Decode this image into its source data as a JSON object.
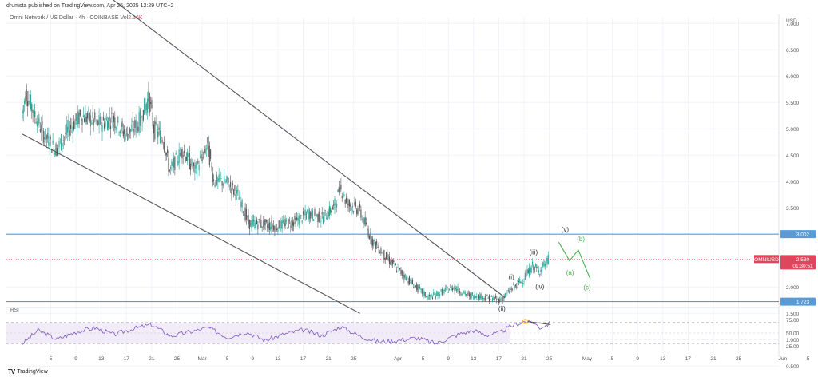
{
  "header": {
    "publisher": "drumsta published on TradingView.com, Apr 25, 2025 12:29 UTC+2",
    "symbol": "Omni Network / US Dollar · 4h · COINBASE",
    "vol_label": "Vol",
    "vol_value": "2.16K"
  },
  "footer": {
    "logo_text": "TradingView"
  },
  "colors": {
    "up": "#26a69a",
    "down": "#555555",
    "level": "#5b9bd5",
    "trendline": "#555555",
    "rsi": "#7e57c2",
    "rsi_band": "#ede7f6",
    "price_label": "#e0455e",
    "wave_black": "#333333",
    "wave_green": "#4caf50",
    "highlight": "#f5a623"
  },
  "chart_data": {
    "type": "candlestick",
    "title": "Omni Network / US Dollar · 4h · COINBASE",
    "axis_currency": "USD",
    "y_ticks": [
      "7.000",
      "6.500",
      "6.000",
      "5.500",
      "5.000",
      "4.500",
      "4.000",
      "3.500",
      "2.000",
      "1.500",
      "1.000",
      "0.500"
    ],
    "ylim": [
      0.3,
      7.4
    ],
    "x_ticks": [
      {
        "label": "5",
        "day": 5
      },
      {
        "label": "9",
        "day": 9
      },
      {
        "label": "13",
        "day": 13
      },
      {
        "label": "17",
        "day": 17
      },
      {
        "label": "21",
        "day": 21
      },
      {
        "label": "25",
        "day": 25
      },
      {
        "label": "Mar",
        "day": 29
      },
      {
        "label": "5",
        "day": 33
      },
      {
        "label": "9",
        "day": 37
      },
      {
        "label": "13",
        "day": 41
      },
      {
        "label": "17",
        "day": 45
      },
      {
        "label": "21",
        "day": 49
      },
      {
        "label": "25",
        "day": 53
      },
      {
        "label": "Apr",
        "day": 60
      },
      {
        "label": "5",
        "day": 64
      },
      {
        "label": "9",
        "day": 68
      },
      {
        "label": "13",
        "day": 72
      },
      {
        "label": "17",
        "day": 76
      },
      {
        "label": "21",
        "day": 80
      },
      {
        "label": "25",
        "day": 84
      },
      {
        "label": "May",
        "day": 90
      },
      {
        "label": "5",
        "day": 94
      },
      {
        "label": "9",
        "day": 98
      },
      {
        "label": "13",
        "day": 102
      },
      {
        "label": "17",
        "day": 106
      },
      {
        "label": "21",
        "day": 110
      },
      {
        "label": "25",
        "day": 114
      },
      {
        "label": "Jun",
        "day": 121
      },
      {
        "label": "5",
        "day": 125
      }
    ],
    "price_path": [
      {
        "day": 0.5,
        "price": 5.2
      },
      {
        "day": 1.2,
        "price": 5.7
      },
      {
        "day": 2.5,
        "price": 5.3
      },
      {
        "day": 4,
        "price": 4.9
      },
      {
        "day": 6,
        "price": 4.6
      },
      {
        "day": 8,
        "price": 5.0
      },
      {
        "day": 10,
        "price": 5.25
      },
      {
        "day": 13,
        "price": 5.1
      },
      {
        "day": 15,
        "price": 5.2
      },
      {
        "day": 17,
        "price": 4.9
      },
      {
        "day": 19,
        "price": 5.1
      },
      {
        "day": 20.7,
        "price": 5.6
      },
      {
        "day": 21.5,
        "price": 5.0
      },
      {
        "day": 23,
        "price": 4.8
      },
      {
        "day": 24,
        "price": 4.2
      },
      {
        "day": 26,
        "price": 4.6
      },
      {
        "day": 28,
        "price": 4.2
      },
      {
        "day": 30,
        "price": 4.7
      },
      {
        "day": 31,
        "price": 4.0
      },
      {
        "day": 33,
        "price": 4.0
      },
      {
        "day": 35,
        "price": 3.7
      },
      {
        "day": 36.5,
        "price": 3.2
      },
      {
        "day": 38,
        "price": 3.2
      },
      {
        "day": 41,
        "price": 3.15
      },
      {
        "day": 44,
        "price": 3.25
      },
      {
        "day": 46,
        "price": 3.4
      },
      {
        "day": 48,
        "price": 3.3
      },
      {
        "day": 50,
        "price": 3.5
      },
      {
        "day": 51,
        "price": 3.9
      },
      {
        "day": 52,
        "price": 3.6
      },
      {
        "day": 54,
        "price": 3.45
      },
      {
        "day": 56,
        "price": 2.9
      },
      {
        "day": 58,
        "price": 2.6
      },
      {
        "day": 60,
        "price": 2.35
      },
      {
        "day": 63,
        "price": 2.0
      },
      {
        "day": 65,
        "price": 1.8
      },
      {
        "day": 67,
        "price": 1.9
      },
      {
        "day": 69,
        "price": 2.0
      },
      {
        "day": 71,
        "price": 1.85
      },
      {
        "day": 73,
        "price": 1.82
      },
      {
        "day": 75,
        "price": 1.78
      },
      {
        "day": 76.5,
        "price": 1.76
      },
      {
        "day": 78,
        "price": 1.95
      },
      {
        "day": 80,
        "price": 2.15
      },
      {
        "day": 81.5,
        "price": 2.4
      },
      {
        "day": 82.5,
        "price": 2.3
      },
      {
        "day": 84,
        "price": 2.53
      }
    ],
    "levels": [
      {
        "value": 3.002,
        "label": "3.002"
      },
      {
        "value": 1.723,
        "label": "1.723"
      }
    ],
    "current": {
      "symbol": "OMNIUSD",
      "value": 2.53,
      "label": "2.530",
      "countdown": "01:30:51"
    },
    "trendlines": [
      {
        "from": {
          "day": 11,
          "price": 7.8
        },
        "to": {
          "day": 77,
          "price": 1.8
        }
      },
      {
        "from": {
          "day": 0.5,
          "price": 4.9
        },
        "to": {
          "day": 54,
          "price": 1.5
        }
      }
    ],
    "wave_labels": [
      {
        "text": "(i)",
        "day": 78,
        "price": 2.15,
        "color": "black"
      },
      {
        "text": "(ii)",
        "day": 76.5,
        "price": 1.55,
        "color": "black"
      },
      {
        "text": "(iii)",
        "day": 81.5,
        "price": 2.62,
        "color": "black"
      },
      {
        "text": "(iv)",
        "day": 82.5,
        "price": 1.97,
        "color": "black"
      },
      {
        "text": "(v)",
        "day": 86.5,
        "price": 3.05,
        "color": "black"
      },
      {
        "text": "(a)",
        "day": 87.3,
        "price": 2.23,
        "color": "green"
      },
      {
        "text": "(b)",
        "day": 89,
        "price": 2.87,
        "color": "green"
      },
      {
        "text": "(c)",
        "day": 90,
        "price": 1.95,
        "color": "green"
      }
    ],
    "projection": [
      {
        "day": 85.5,
        "price": 2.85
      },
      {
        "day": 87.2,
        "price": 2.5
      },
      {
        "day": 88.6,
        "price": 2.7
      },
      {
        "day": 90.5,
        "price": 2.15
      }
    ],
    "rsi": {
      "label": "RSI",
      "ticks": [
        "75.00",
        "50.00",
        "25.00"
      ],
      "upper": 70,
      "lower": 30,
      "mid": 50,
      "ylim": [
        20,
        80
      ],
      "path": [
        {
          "day": 0.5,
          "v": 30
        },
        {
          "day": 3,
          "v": 55
        },
        {
          "day": 6,
          "v": 38
        },
        {
          "day": 9,
          "v": 52
        },
        {
          "day": 12,
          "v": 60
        },
        {
          "day": 15,
          "v": 47
        },
        {
          "day": 18,
          "v": 58
        },
        {
          "day": 21,
          "v": 66
        },
        {
          "day": 24,
          "v": 44
        },
        {
          "day": 27,
          "v": 52
        },
        {
          "day": 30,
          "v": 60
        },
        {
          "day": 33,
          "v": 42
        },
        {
          "day": 36,
          "v": 52
        },
        {
          "day": 39,
          "v": 36
        },
        {
          "day": 42,
          "v": 48
        },
        {
          "day": 45,
          "v": 56
        },
        {
          "day": 48,
          "v": 45
        },
        {
          "day": 51,
          "v": 62
        },
        {
          "day": 54,
          "v": 44
        },
        {
          "day": 57,
          "v": 33
        },
        {
          "day": 60,
          "v": 36
        },
        {
          "day": 63,
          "v": 41
        },
        {
          "day": 66,
          "v": 30
        },
        {
          "day": 68,
          "v": 40
        },
        {
          "day": 70,
          "v": 49
        },
        {
          "day": 72,
          "v": 55
        },
        {
          "day": 74,
          "v": 46
        },
        {
          "day": 76,
          "v": 50
        },
        {
          "day": 78,
          "v": 63
        },
        {
          "day": 80,
          "v": 72
        },
        {
          "day": 81.5,
          "v": 70
        },
        {
          "day": 82.5,
          "v": 60
        },
        {
          "day": 84,
          "v": 68
        }
      ]
    }
  }
}
